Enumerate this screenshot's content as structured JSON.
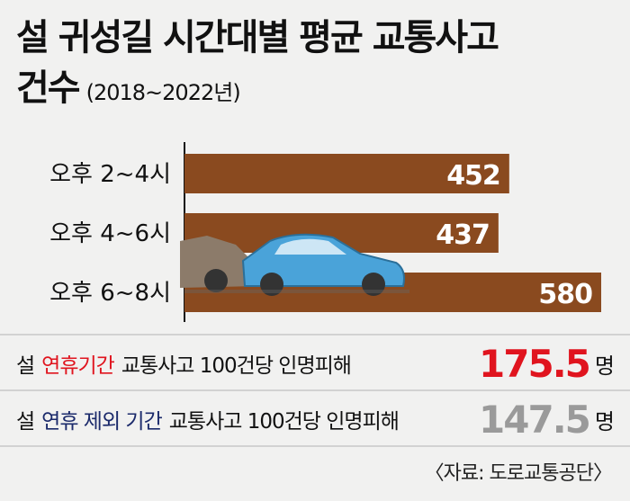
{
  "chart_data": {
    "type": "bar",
    "orientation": "horizontal",
    "title": "설 귀성길 시간대별 평균 교통사고 건수",
    "subtitle": "(2018~2022년)",
    "categories": [
      "오후 2~4시",
      "오후 4~6시",
      "오후 6~8시"
    ],
    "values": [
      452,
      437,
      580
    ],
    "color": "#8a4a1f"
  },
  "stats": [
    {
      "prefix": "설",
      "highlight": "연휴기간",
      "suffix": "교통사고 100건당 인명피해",
      "value": 175.5,
      "unit": "명",
      "highlight_color": "#e0141e",
      "value_color": "#e0141e"
    },
    {
      "prefix": "설",
      "highlight": "연휴 제외 기간",
      "suffix": "교통사고 100건당 인명피해",
      "value": 147.5,
      "unit": "명",
      "highlight_color": "#1b2a6b",
      "value_color": "#9a9a9a"
    }
  ],
  "source": "〈자료: 도로교통공단〉"
}
